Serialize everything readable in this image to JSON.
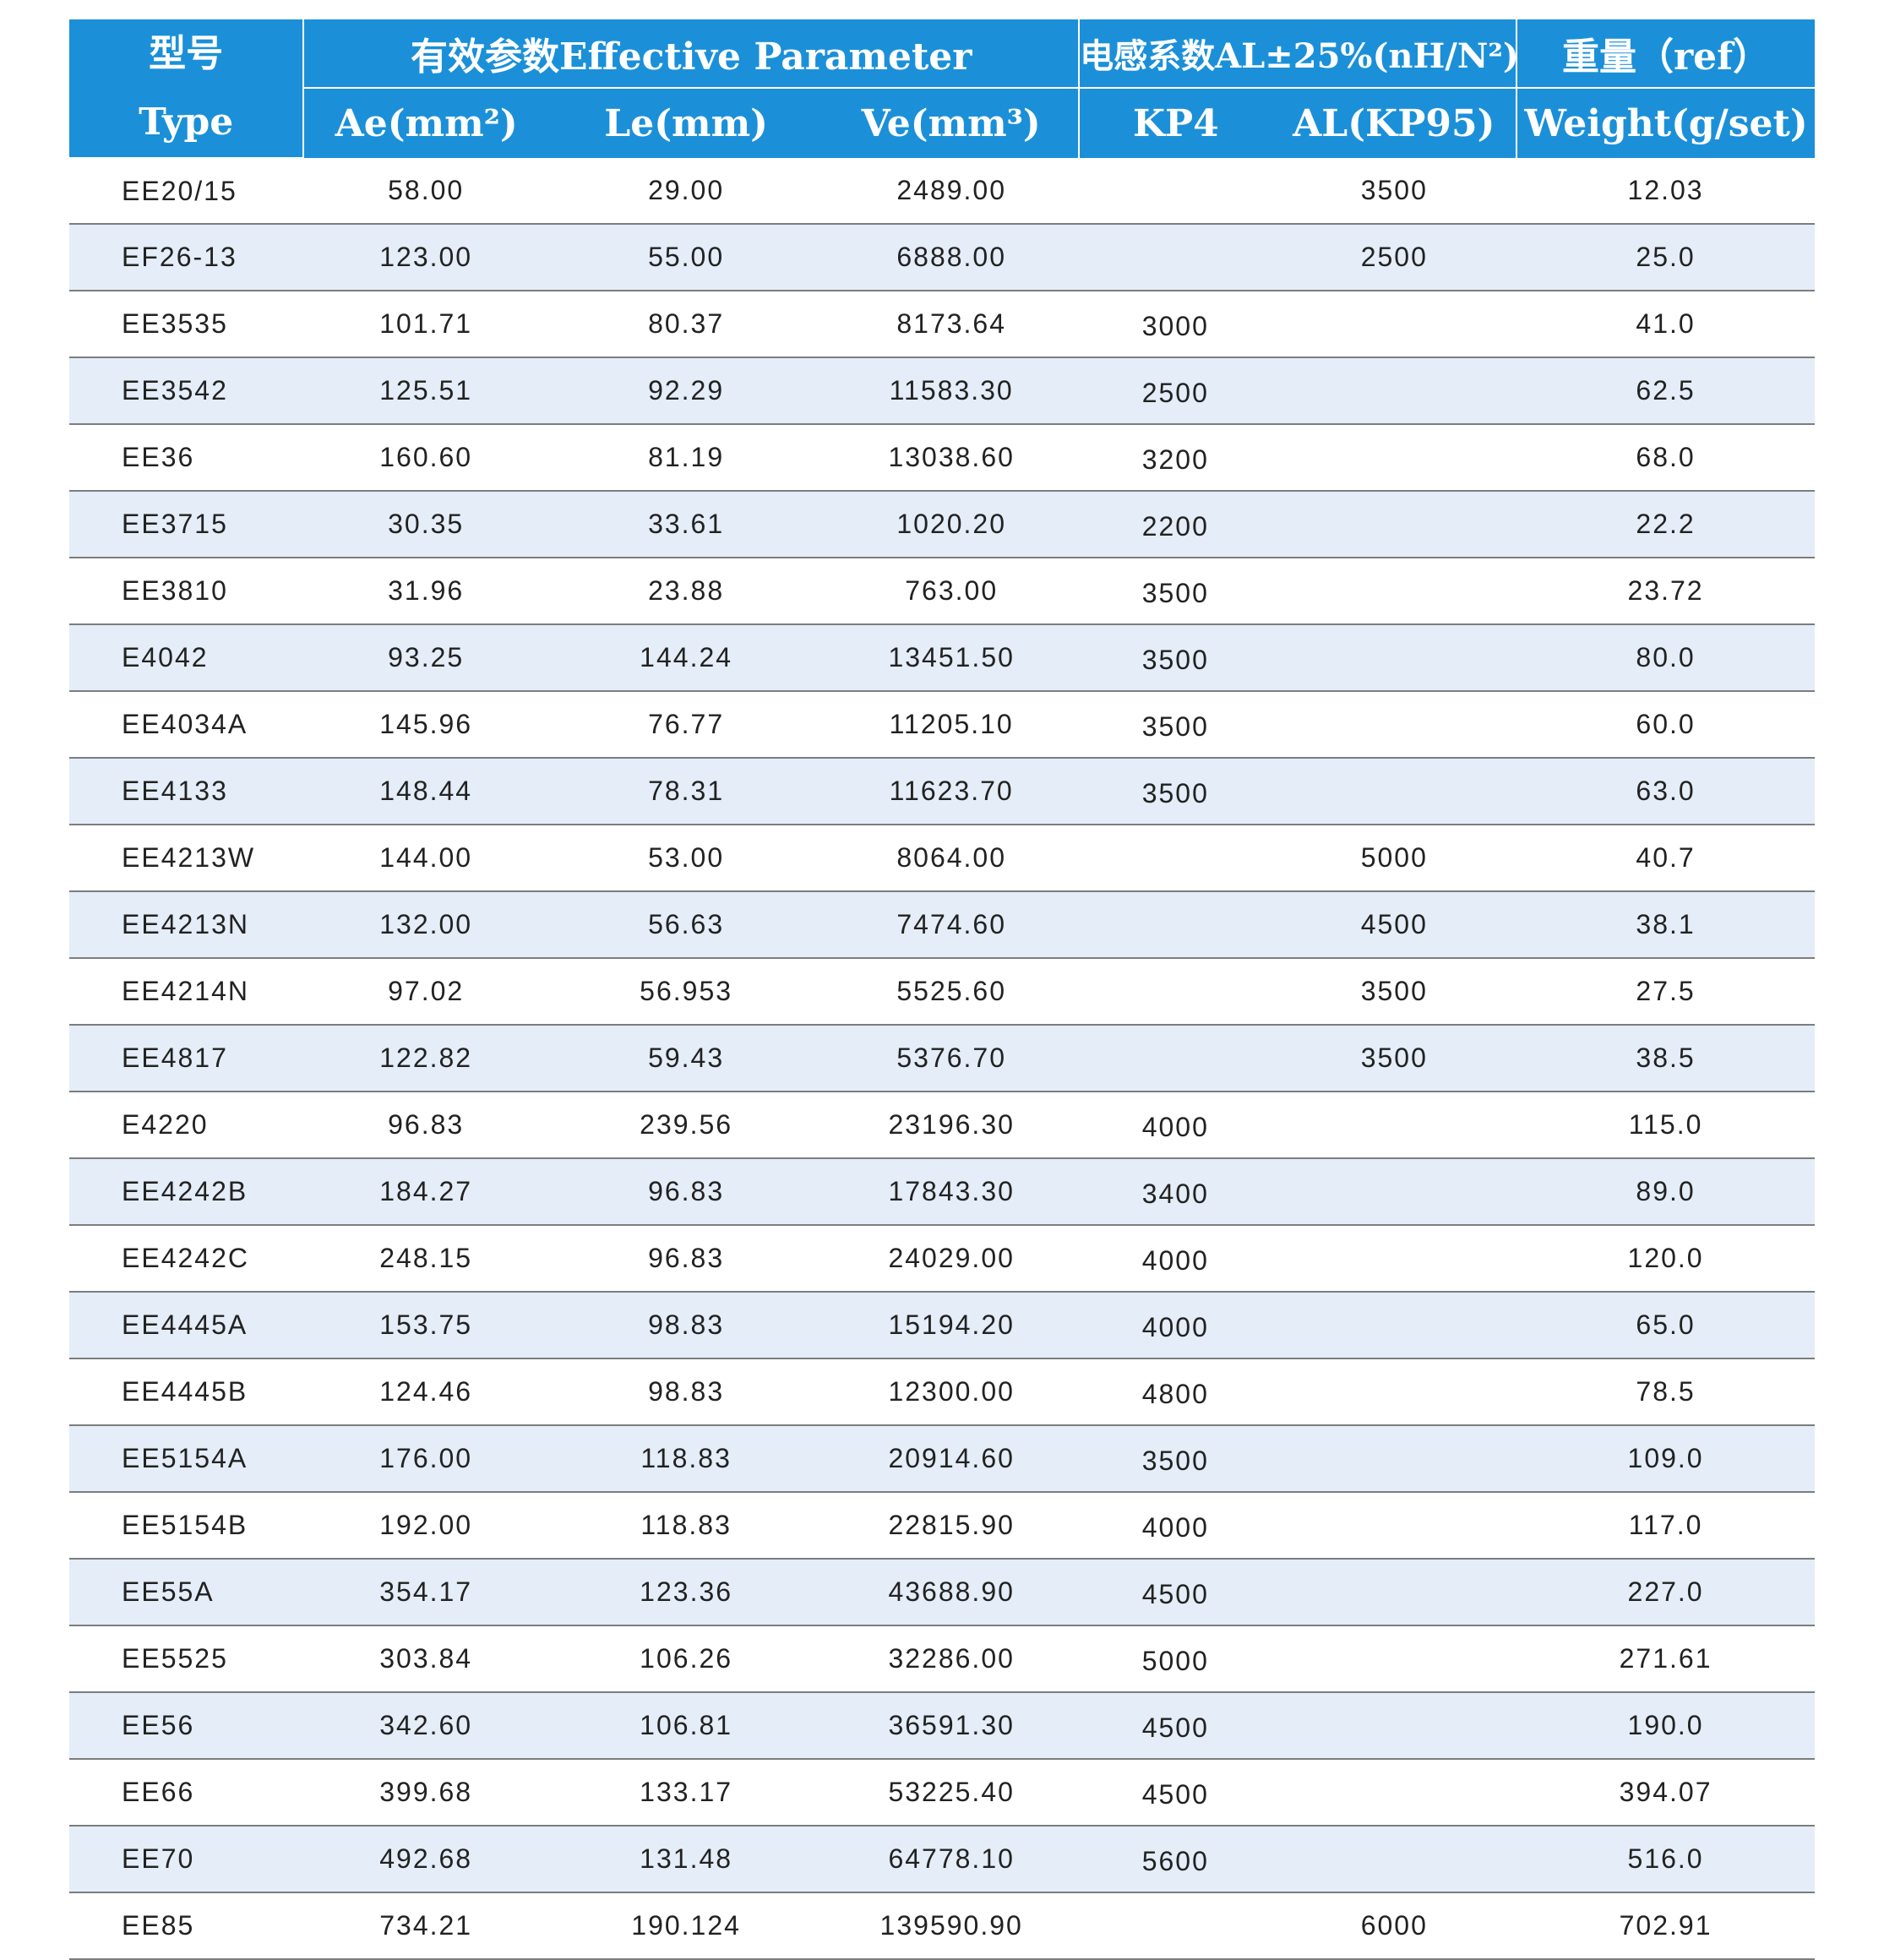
{
  "header": {
    "type_cn": "型号",
    "type_en": "Type",
    "effective": "有效参数Effective Parameter",
    "inductance": "电感系数AL±25%(nH/N²)",
    "weight_cn": "重量（ref）",
    "ae": "Ae(mm²)",
    "le": "Le(mm)",
    "ve": "Ve(mm³)",
    "kp4": "KP4",
    "al_kp95": "AL(KP95)",
    "weight_en": "Weight(g/set)"
  },
  "rows": [
    {
      "type": "EE20/15",
      "ae": "58.00",
      "le": "29.00",
      "ve": "2489.00",
      "kp4": "",
      "kp95": "3500",
      "weight": "12.03"
    },
    {
      "type": "EF26-13",
      "ae": "123.00",
      "le": "55.00",
      "ve": "6888.00",
      "kp4": "",
      "kp95": "2500",
      "weight": "25.0"
    },
    {
      "type": "EE3535",
      "ae": "101.71",
      "le": "80.37",
      "ve": "8173.64",
      "kp4": "3000",
      "kp95": "",
      "weight": "41.0"
    },
    {
      "type": "EE3542",
      "ae": "125.51",
      "le": "92.29",
      "ve": "11583.30",
      "kp4": "2500",
      "kp95": "",
      "weight": "62.5"
    },
    {
      "type": "EE36",
      "ae": "160.60",
      "le": "81.19",
      "ve": "13038.60",
      "kp4": "3200",
      "kp95": "",
      "weight": "68.0"
    },
    {
      "type": "EE3715",
      "ae": "30.35",
      "le": "33.61",
      "ve": "1020.20",
      "kp4": "2200",
      "kp95": "",
      "weight": "22.2"
    },
    {
      "type": "EE3810",
      "ae": "31.96",
      "le": "23.88",
      "ve": "763.00",
      "kp4": "3500",
      "kp95": "",
      "weight": "23.72"
    },
    {
      "type": "E4042",
      "ae": "93.25",
      "le": "144.24",
      "ve": "13451.50",
      "kp4": "3500",
      "kp95": "",
      "weight": "80.0"
    },
    {
      "type": "EE4034A",
      "ae": "145.96",
      "le": "76.77",
      "ve": "11205.10",
      "kp4": "3500",
      "kp95": "",
      "weight": "60.0"
    },
    {
      "type": "EE4133",
      "ae": "148.44",
      "le": "78.31",
      "ve": "11623.70",
      "kp4": "3500",
      "kp95": "",
      "weight": "63.0"
    },
    {
      "type": "EE4213W",
      "ae": "144.00",
      "le": "53.00",
      "ve": "8064.00",
      "kp4": "",
      "kp95": "5000",
      "weight": "40.7"
    },
    {
      "type": "EE4213N",
      "ae": "132.00",
      "le": "56.63",
      "ve": "7474.60",
      "kp4": "",
      "kp95": "4500",
      "weight": "38.1"
    },
    {
      "type": "EE4214N",
      "ae": "97.02",
      "le": "56.953",
      "ve": "5525.60",
      "kp4": "",
      "kp95": "3500",
      "weight": "27.5"
    },
    {
      "type": "EE4817",
      "ae": "122.82",
      "le": "59.43",
      "ve": "5376.70",
      "kp4": "",
      "kp95": "3500",
      "weight": "38.5"
    },
    {
      "type": "E4220",
      "ae": "96.83",
      "le": "239.56",
      "ve": "23196.30",
      "kp4": "4000",
      "kp95": "",
      "weight": "115.0"
    },
    {
      "type": "EE4242B",
      "ae": "184.27",
      "le": "96.83",
      "ve": "17843.30",
      "kp4": "3400",
      "kp95": "",
      "weight": "89.0"
    },
    {
      "type": "EE4242C",
      "ae": "248.15",
      "le": "96.83",
      "ve": "24029.00",
      "kp4": "4000",
      "kp95": "",
      "weight": "120.0"
    },
    {
      "type": "EE4445A",
      "ae": "153.75",
      "le": "98.83",
      "ve": "15194.20",
      "kp4": "4000",
      "kp95": "",
      "weight": "65.0"
    },
    {
      "type": "EE4445B",
      "ae": "124.46",
      "le": "98.83",
      "ve": "12300.00",
      "kp4": "4800",
      "kp95": "",
      "weight": "78.5"
    },
    {
      "type": "EE5154A",
      "ae": "176.00",
      "le": "118.83",
      "ve": "20914.60",
      "kp4": "3500",
      "kp95": "",
      "weight": "109.0"
    },
    {
      "type": "EE5154B",
      "ae": "192.00",
      "le": "118.83",
      "ve": "22815.90",
      "kp4": "4000",
      "kp95": "",
      "weight": "117.0"
    },
    {
      "type": "EE55A",
      "ae": "354.17",
      "le": "123.36",
      "ve": "43688.90",
      "kp4": "4500",
      "kp95": "",
      "weight": "227.0"
    },
    {
      "type": "EE5525",
      "ae": "303.84",
      "le": "106.26",
      "ve": "32286.00",
      "kp4": "5000",
      "kp95": "",
      "weight": "271.61"
    },
    {
      "type": "EE56",
      "ae": "342.60",
      "le": "106.81",
      "ve": "36591.30",
      "kp4": "4500",
      "kp95": "",
      "weight": "190.0"
    },
    {
      "type": "EE66",
      "ae": "399.68",
      "le": "133.17",
      "ve": "53225.40",
      "kp4": "4500",
      "kp95": "",
      "weight": "394.07"
    },
    {
      "type": "EE70",
      "ae": "492.68",
      "le": "131.48",
      "ve": "64778.10",
      "kp4": "5600",
      "kp95": "",
      "weight": "516.0"
    },
    {
      "type": "EE85",
      "ae": "734.21",
      "le": "190.124",
      "ve": "139590.90",
      "kp4": "",
      "kp95": "6000",
      "weight": "702.91"
    }
  ],
  "colors": {
    "header_bg": "#1b90d8",
    "header_text": "#ffffff",
    "alt_row_bg": "#e4edf8",
    "row_border": "#7d7d7d"
  }
}
